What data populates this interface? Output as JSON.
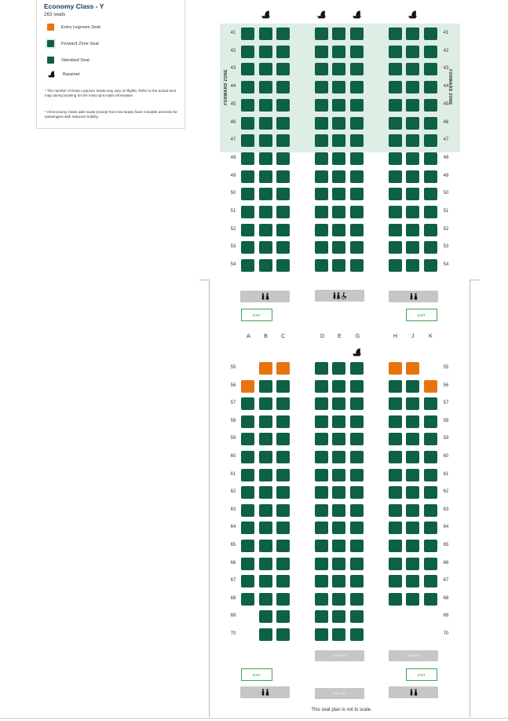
{
  "legend": {
    "title": "Economy Class - Y",
    "count": "263 seats",
    "items": [
      {
        "label": "Extra Legroom Seat",
        "color": "#e87410",
        "icon": "orange-seat-swatch"
      },
      {
        "label": "Forward Zone Seat",
        "color": "#0e6047",
        "icon": "forward-zone-seat-swatch"
      },
      {
        "label": "Standard Seat",
        "color": "#0e6047",
        "icon": "standard-seat-swatch"
      },
      {
        "label": "Bassinet",
        "color": "#111111",
        "icon": "bassinet-icon"
      }
    ],
    "note1": "* The number of Extra Legroom Seats may vary on flights. Refer to the actual seat map during booking for the most up-to-date information.",
    "note2": "* All Economy Class aisle seats (except front row seats) have movable armrests for passengers with reduced mobility."
  },
  "seatmap": {
    "forward_zone_label": "FORWARD ZONE",
    "columns": [
      "A",
      "B",
      "C",
      "D",
      "E",
      "G",
      "H",
      "J",
      "K"
    ],
    "upper_rows": [
      "41",
      "42",
      "43",
      "44",
      "45",
      "46",
      "47",
      "48",
      "49",
      "50",
      "51",
      "52",
      "53",
      "54"
    ],
    "lower_rows": [
      "55",
      "56",
      "57",
      "58",
      "59",
      "60",
      "61",
      "62",
      "63",
      "64",
      "65",
      "66",
      "67",
      "68",
      "69",
      "70"
    ],
    "exit_label": "EXIT",
    "galley_label": "GALLEY",
    "footnote": "This seat plan is not to scale.",
    "colors": {
      "standard": "#0e6047",
      "extra_legroom": "#e87410",
      "forward_zone_bg": "#dfeee4"
    }
  }
}
